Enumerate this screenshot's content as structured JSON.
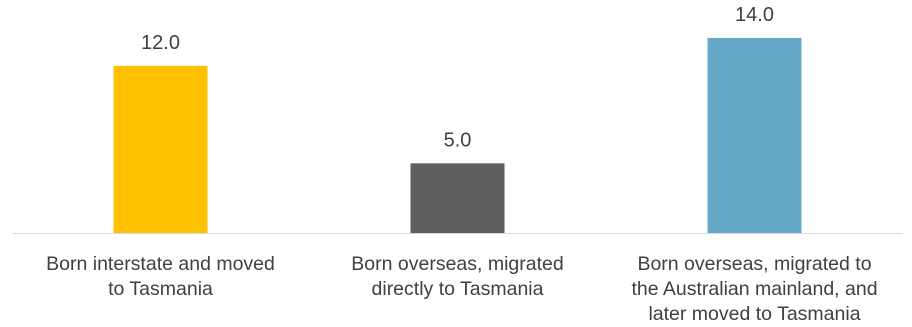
{
  "chart_data": {
    "type": "bar",
    "title": "",
    "xlabel": "",
    "ylabel": "",
    "ylim": [
      0,
      14.5
    ],
    "grid": false,
    "legend": "none",
    "categories": [
      "Born interstate and moved to Tasmania",
      "Born overseas, migrated directly to Tasmania",
      "Born overseas, migrated to the Australian mainland, and later moved to Tasmania"
    ],
    "category_lines": [
      [
        "Born interstate and moved",
        "to Tasmania"
      ],
      [
        "Born overseas, migrated",
        "directly to Tasmania"
      ],
      [
        "Born overseas, migrated to",
        "the Australian mainland, and",
        "later moved to Tasmania"
      ]
    ],
    "values": [
      12.0,
      5.0,
      14.0
    ],
    "value_labels": [
      "12.0",
      "5.0",
      "14.0"
    ],
    "colors": [
      "#ffc000",
      "#5f5f5f",
      "#65a8c7"
    ],
    "axis_color": "#d9d9d9"
  }
}
